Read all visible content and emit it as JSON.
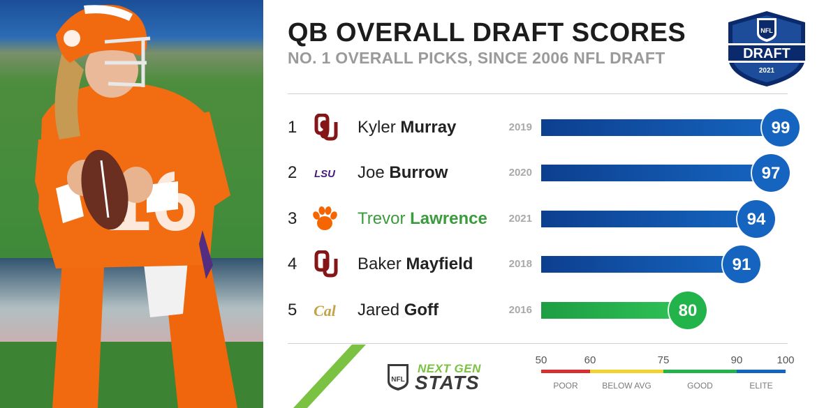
{
  "header": {
    "title": "QB OVERALL DRAFT SCORES",
    "subtitle": "NO. 1 OVERALL PICKS, SINCE 2006 NFL DRAFT"
  },
  "logos": {
    "draft_logo": {
      "shield_text": "NFL",
      "main_text": "DRAFT",
      "year_text": "2021"
    },
    "next_gen_stats": {
      "line1": "NEXT GEN",
      "line2": "STATS"
    }
  },
  "chart_data": {
    "type": "bar",
    "orientation": "horizontal",
    "title": "QB OVERALL DRAFT SCORES",
    "subtitle": "NO. 1 OVERALL PICKS, SINCE 2006 NFL DRAFT",
    "xlim": [
      50,
      100
    ],
    "grid": false,
    "rows": [
      {
        "rank": "1",
        "first": "Kyler",
        "last": "Murray",
        "school_icon": "oklahoma-logo-icon",
        "year": "2019",
        "score": 99,
        "tier": "ELITE",
        "highlight": false
      },
      {
        "rank": "2",
        "first": "Joe",
        "last": "Burrow",
        "school_icon": "lsu-logo-icon",
        "year": "2020",
        "score": 97,
        "tier": "ELITE",
        "highlight": false
      },
      {
        "rank": "3",
        "first": "Trevor",
        "last": "Lawrence",
        "school_icon": "clemson-paw-icon",
        "year": "2021",
        "score": 94,
        "tier": "ELITE",
        "highlight": true
      },
      {
        "rank": "4",
        "first": "Baker",
        "last": "Mayfield",
        "school_icon": "oklahoma-logo-icon",
        "year": "2018",
        "score": 91,
        "tier": "ELITE",
        "highlight": false
      },
      {
        "rank": "5",
        "first": "Jared",
        "last": "Goff",
        "school_icon": "cal-logo-icon",
        "year": "2016",
        "score": 80,
        "tier": "GOOD",
        "highlight": false
      }
    ],
    "scale": {
      "ticks": [
        "50",
        "60",
        "75",
        "90",
        "100"
      ],
      "tick_values": [
        50,
        60,
        75,
        90,
        100
      ],
      "segments": [
        {
          "label": "POOR",
          "from": 50,
          "to": 60,
          "color": "#d62f2f"
        },
        {
          "label": "BELOW AVG",
          "from": 60,
          "to": 75,
          "color": "#f2d230"
        },
        {
          "label": "GOOD",
          "from": 75,
          "to": 90,
          "color": "#22b34a"
        },
        {
          "label": "ELITE",
          "from": 90,
          "to": 100,
          "color": "#1565c0"
        }
      ]
    }
  },
  "colors": {
    "elite_bar": "#1565c0",
    "elite_bar_dark": "#0d3f8f",
    "good_bar": "#22b34a",
    "highlight_text": "#3a9c3c",
    "oklahoma": "#841617",
    "lsu": "#461d7c",
    "clemson": "#f56600",
    "cal": "#c4a248"
  }
}
